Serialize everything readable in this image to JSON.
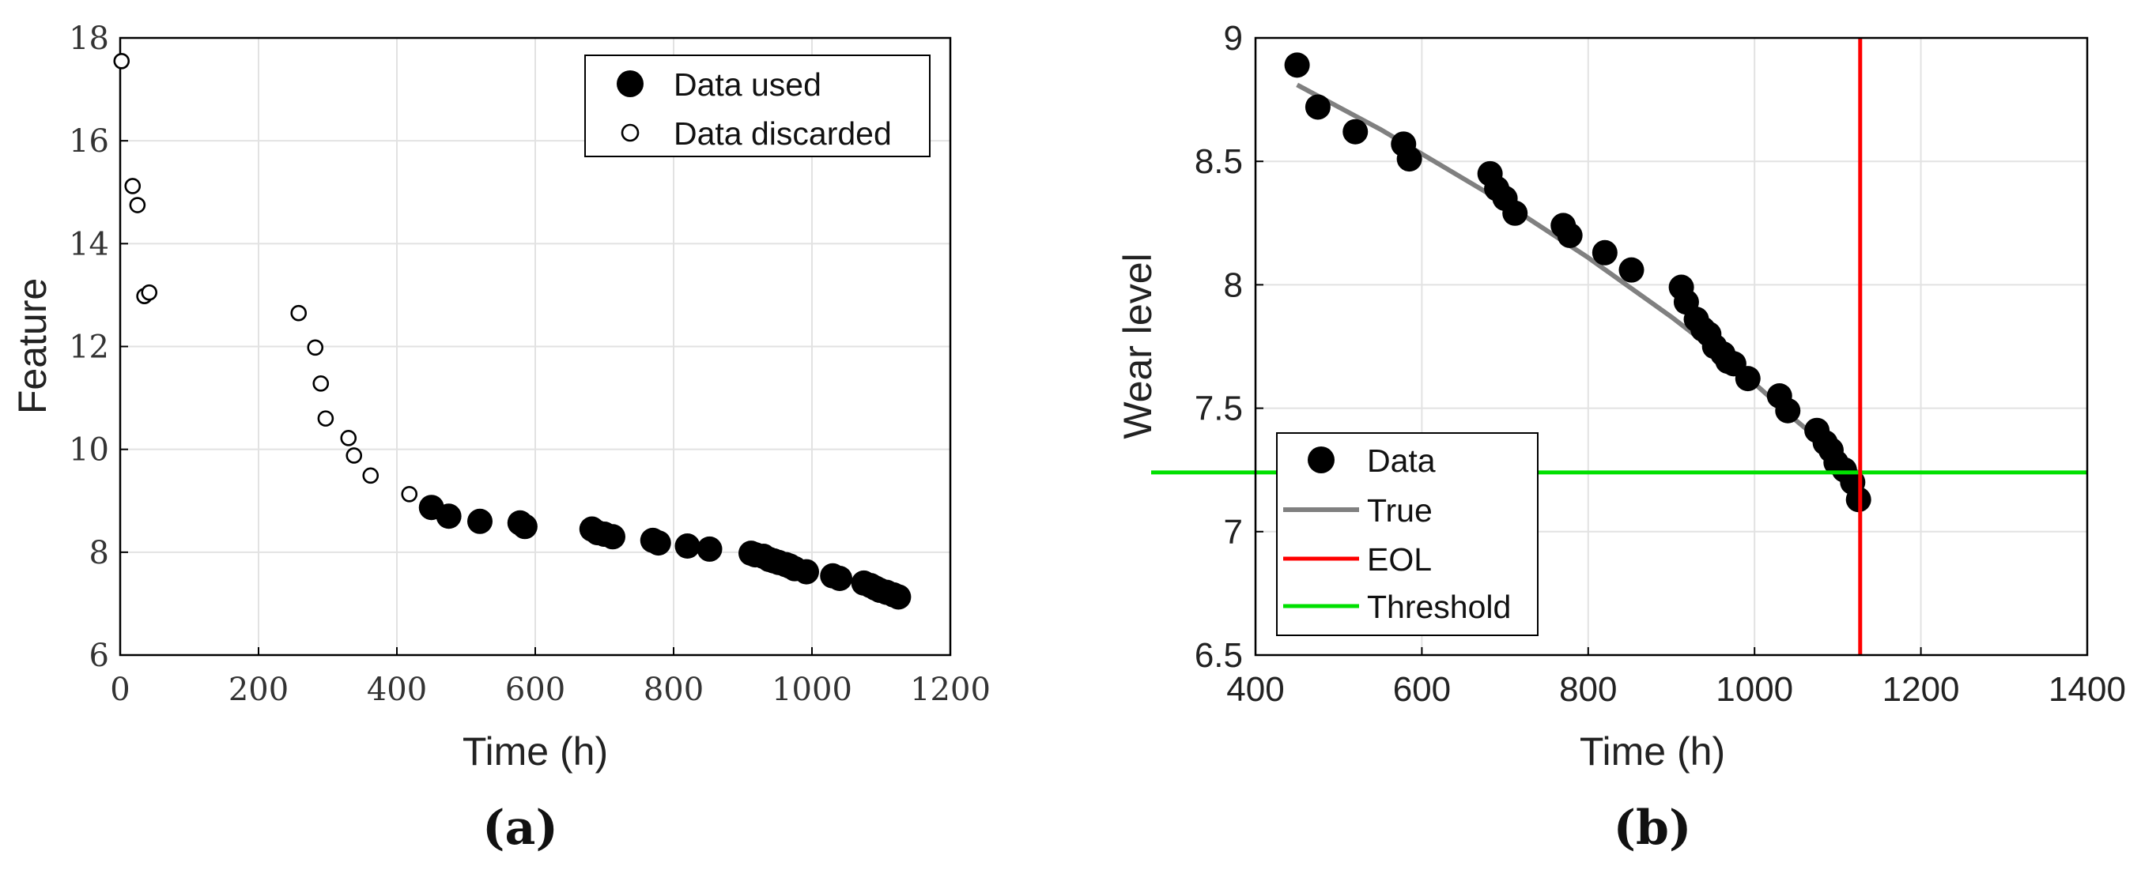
{
  "chart_data": [
    {
      "type": "scatter",
      "panel_label": "(a)",
      "xlabel": "Time (h)",
      "ylabel": "Feature",
      "xlim": [
        0,
        1200
      ],
      "ylim": [
        6,
        18
      ],
      "xticks": [
        "0",
        "200",
        "400",
        "600",
        "800",
        "1000",
        "1200"
      ],
      "yticks": [
        "6",
        "8",
        "10",
        "12",
        "14",
        "16",
        "18"
      ],
      "grid": true,
      "legend_position": "top-right",
      "series": [
        {
          "name": "Data used",
          "marker": "filled-circle",
          "color": "#000000",
          "x": [
            450,
            475,
            520,
            578,
            585,
            682,
            690,
            700,
            712,
            770,
            778,
            820,
            852,
            912,
            918,
            930,
            938,
            945,
            952,
            962,
            968,
            975,
            992,
            1030,
            1040,
            1075,
            1085,
            1092,
            1098,
            1108,
            1118,
            1125
          ],
          "y": [
            8.87,
            8.7,
            8.6,
            8.57,
            8.5,
            8.45,
            8.38,
            8.35,
            8.3,
            8.23,
            8.18,
            8.12,
            8.06,
            7.98,
            7.95,
            7.92,
            7.86,
            7.83,
            7.8,
            7.76,
            7.73,
            7.68,
            7.62,
            7.54,
            7.49,
            7.4,
            7.35,
            7.3,
            7.26,
            7.22,
            7.17,
            7.13
          ]
        },
        {
          "name": "Data discarded",
          "marker": "open-circle",
          "color": "#000000",
          "x": [
            2,
            18,
            25,
            35,
            42,
            258,
            282,
            290,
            297,
            330,
            338,
            362,
            418
          ],
          "y": [
            17.55,
            15.12,
            14.75,
            12.98,
            13.05,
            12.65,
            11.98,
            11.28,
            10.6,
            10.22,
            9.88,
            9.49,
            9.13
          ]
        }
      ]
    },
    {
      "type": "scatter",
      "panel_label": "(b)",
      "xlabel": "Time (h)",
      "ylabel": "Wear level",
      "xlim": [
        400,
        1400
      ],
      "ylim": [
        6.5,
        9
      ],
      "xticks": [
        "400",
        "600",
        "800",
        "1000",
        "1200",
        "1400"
      ],
      "yticks": [
        "6.5",
        "7",
        "7.5",
        "8",
        "8.5",
        "9"
      ],
      "grid": true,
      "legend_position": "bottom-left",
      "series": [
        {
          "name": "Data",
          "marker": "filled-circle",
          "color": "#000000",
          "x": [
            450,
            475,
            520,
            578,
            585,
            682,
            690,
            700,
            712,
            770,
            778,
            820,
            852,
            912,
            918,
            930,
            938,
            945,
            952,
            962,
            968,
            975,
            992,
            1030,
            1040,
            1075,
            1085,
            1092,
            1098,
            1108,
            1118,
            1125
          ],
          "y": [
            8.89,
            8.72,
            8.62,
            8.57,
            8.51,
            8.45,
            8.39,
            8.35,
            8.29,
            8.24,
            8.2,
            8.13,
            8.06,
            7.99,
            7.93,
            7.86,
            7.82,
            7.8,
            7.75,
            7.72,
            7.69,
            7.68,
            7.62,
            7.55,
            7.49,
            7.41,
            7.36,
            7.33,
            7.28,
            7.25,
            7.2,
            7.13
          ]
        },
        {
          "name": "True",
          "type": "line",
          "color": "#808080",
          "x": [
            450,
            500,
            550,
            600,
            650,
            700,
            750,
            800,
            850,
            900,
            950,
            1000,
            1050,
            1100,
            1127
          ],
          "y": [
            8.81,
            8.72,
            8.63,
            8.53,
            8.43,
            8.33,
            8.22,
            8.11,
            7.99,
            7.87,
            7.74,
            7.6,
            7.45,
            7.31,
            7.23
          ]
        },
        {
          "name": "EOL",
          "type": "vline",
          "color": "#ff0000",
          "x": 1127
        },
        {
          "name": "Threshold",
          "type": "hline",
          "color": "#00e000",
          "y": 7.24
        }
      ]
    }
  ]
}
